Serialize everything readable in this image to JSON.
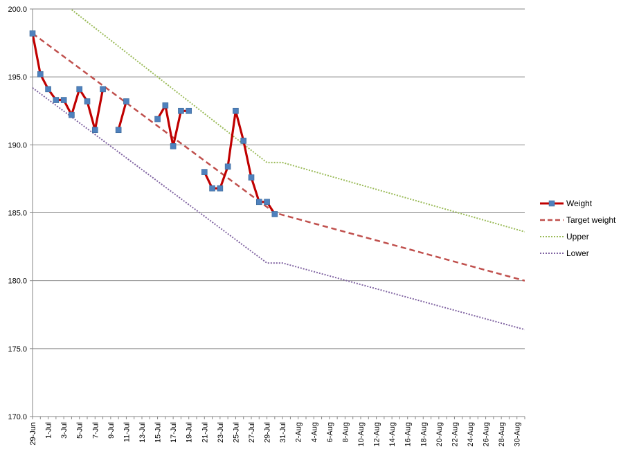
{
  "chart_data": {
    "type": "line",
    "title": "",
    "xlabel": "",
    "ylabel": "",
    "ylim": [
      170,
      200
    ],
    "yticks": [
      "170.0",
      "175.0",
      "180.0",
      "185.0",
      "190.0",
      "195.0",
      "200.0"
    ],
    "start_date": "29-Jun",
    "x_tick_labels": [
      "29-Jun",
      "1-Jul",
      "3-Jul",
      "5-Jul",
      "7-Jul",
      "9-Jul",
      "11-Jul",
      "13-Jul",
      "15-Jul",
      "17-Jul",
      "19-Jul",
      "21-Jul",
      "23-Jul",
      "25-Jul",
      "27-Jul",
      "29-Jul",
      "31-Jul",
      "2-Aug",
      "4-Aug",
      "6-Aug",
      "8-Aug",
      "10-Aug",
      "12-Aug",
      "14-Aug",
      "16-Aug",
      "18-Aug",
      "20-Aug",
      "22-Aug",
      "24-Aug",
      "26-Aug",
      "28-Aug",
      "30-Aug"
    ],
    "grid": "horizontal",
    "legend_position": "right",
    "colors": {
      "weight_line": "#c00000",
      "weight_marker": "#4f81bd",
      "target": "#c0504d",
      "upper": "#9bbb59",
      "lower": "#8064a2"
    },
    "series": [
      {
        "name": "Weight",
        "style": "solid-with-markers",
        "segments": [
          [
            {
              "x": "29-Jun",
              "y": 198.2
            },
            {
              "x": "30-Jun",
              "y": 195.2
            },
            {
              "x": "1-Jul",
              "y": 194.1
            },
            {
              "x": "2-Jul",
              "y": 193.3
            },
            {
              "x": "3-Jul",
              "y": 193.3
            },
            {
              "x": "4-Jul",
              "y": 192.2
            },
            {
              "x": "5-Jul",
              "y": 194.1
            },
            {
              "x": "6-Jul",
              "y": 193.2
            },
            {
              "x": "7-Jul",
              "y": 191.1
            },
            {
              "x": "8-Jul",
              "y": 194.1
            }
          ],
          [
            {
              "x": "10-Jul",
              "y": 191.1
            },
            {
              "x": "11-Jul",
              "y": 193.2
            }
          ],
          [
            {
              "x": "15-Jul",
              "y": 191.9
            },
            {
              "x": "16-Jul",
              "y": 192.9
            },
            {
              "x": "17-Jul",
              "y": 189.9
            },
            {
              "x": "18-Jul",
              "y": 192.5
            },
            {
              "x": "19-Jul",
              "y": 192.5
            }
          ],
          [
            {
              "x": "21-Jul",
              "y": 188.0
            },
            {
              "x": "22-Jul",
              "y": 186.8
            },
            {
              "x": "23-Jul",
              "y": 186.8
            },
            {
              "x": "24-Jul",
              "y": 188.4
            },
            {
              "x": "25-Jul",
              "y": 192.5
            },
            {
              "x": "26-Jul",
              "y": 190.3
            },
            {
              "x": "27-Jul",
              "y": 187.6
            },
            {
              "x": "28-Jul",
              "y": 185.8
            },
            {
              "x": "29-Jul",
              "y": 185.8
            },
            {
              "x": "30-Jul",
              "y": 184.9
            }
          ]
        ]
      },
      {
        "name": "Target weight",
        "style": "dashed",
        "points": [
          {
            "x": "29-Jun",
            "y": 198.2
          },
          {
            "x": "30-Jul",
            "y": 185.0
          },
          {
            "x": "31-Aug",
            "y": 180.0
          }
        ]
      },
      {
        "name": "Upper",
        "style": "dotted",
        "points": [
          {
            "x": "29-Jun",
            "y": 202.2
          },
          {
            "x": "29-Jul",
            "y": 188.7
          },
          {
            "x": "31-Jul",
            "y": 188.7
          },
          {
            "x": "31-Aug",
            "y": 183.6
          }
        ]
      },
      {
        "name": "Lower",
        "style": "dotted",
        "points": [
          {
            "x": "29-Jun",
            "y": 194.2
          },
          {
            "x": "29-Jul",
            "y": 181.3
          },
          {
            "x": "31-Jul",
            "y": 181.3
          },
          {
            "x": "31-Aug",
            "y": 176.4
          }
        ]
      }
    ]
  }
}
